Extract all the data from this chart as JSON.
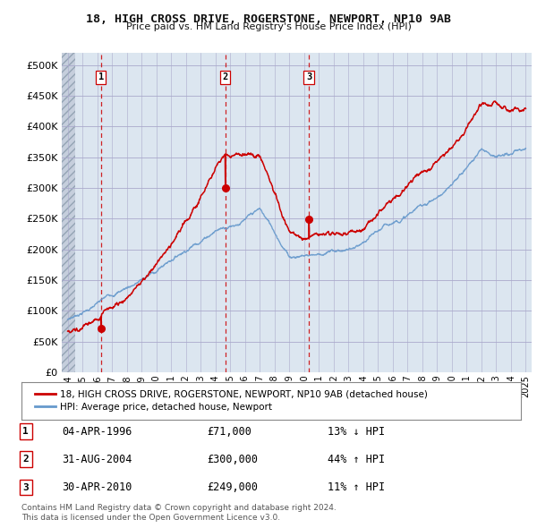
{
  "title": "18, HIGH CROSS DRIVE, ROGERSTONE, NEWPORT, NP10 9AB",
  "subtitle": "Price paid vs. HM Land Registry's House Price Index (HPI)",
  "ylim": [
    0,
    520000
  ],
  "yticks": [
    0,
    50000,
    100000,
    150000,
    200000,
    250000,
    300000,
    350000,
    400000,
    450000,
    500000
  ],
  "ytick_labels": [
    "£0",
    "£50K",
    "£100K",
    "£150K",
    "£200K",
    "£250K",
    "£300K",
    "£350K",
    "£400K",
    "£450K",
    "£500K"
  ],
  "xlim_start": 1993.6,
  "xlim_end": 2025.4,
  "sale_dates": [
    1996.25,
    2004.67,
    2010.33
  ],
  "sale_prices": [
    71000,
    300000,
    249000
  ],
  "sale_labels": [
    "1",
    "2",
    "3"
  ],
  "sale_date_strs": [
    "04-APR-1996",
    "31-AUG-2004",
    "30-APR-2010"
  ],
  "sale_price_strs": [
    "£71,000",
    "£300,000",
    "£249,000"
  ],
  "sale_hpi_strs": [
    "13% ↓ HPI",
    "44% ↑ HPI",
    "11% ↑ HPI"
  ],
  "line_color_red": "#cc0000",
  "line_color_blue": "#6699cc",
  "vline_color": "#cc0000",
  "grid_color": "#aaaacc",
  "plot_bg_color": "#dce6f0",
  "hatch_color": "#c0c8d8",
  "legend_label_red": "18, HIGH CROSS DRIVE, ROGERSTONE, NEWPORT, NP10 9AB (detached house)",
  "legend_label_blue": "HPI: Average price, detached house, Newport",
  "footnote1": "Contains HM Land Registry data © Crown copyright and database right 2024.",
  "footnote2": "This data is licensed under the Open Government Licence v3.0.",
  "bg_color": "#ffffff"
}
